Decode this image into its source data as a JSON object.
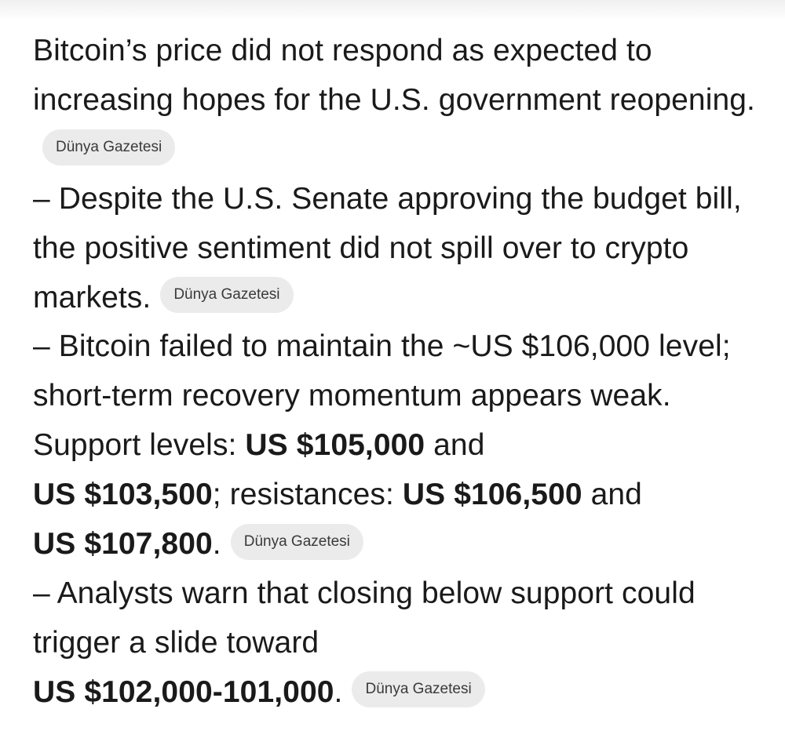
{
  "paragraphs": [
    {
      "text": "Bitcoin’s price did not respond as expected to increasing hopes for the U.S. government reopening.",
      "source": "Dünya Gazetesi"
    },
    {
      "text": "– Despite the U.S. Senate approving the budget bill, the positive sentiment did not spill over to crypto markets.",
      "source": "Dünya Gazetesi"
    },
    {
      "intro": "– Bitcoin failed to maintain the ~US $106,000 level; short-term recovery momentum appears weak. Support levels: ",
      "support_1": "US $105,000",
      "join_1": " and ",
      "support_2": "US $103,500",
      "mid": "; resistances: ",
      "resistance_1": "US $106,500",
      "join_2": " and ",
      "resistance_2": "US $107,800",
      "end": ".",
      "source": "Dünya Gazetesi"
    },
    {
      "intro": "– Analysts warn that closing below support could trigger a slide toward",
      "target_range": "US $102,000-101,000",
      "end": ".",
      "source": "Dünya Gazetesi"
    }
  ]
}
